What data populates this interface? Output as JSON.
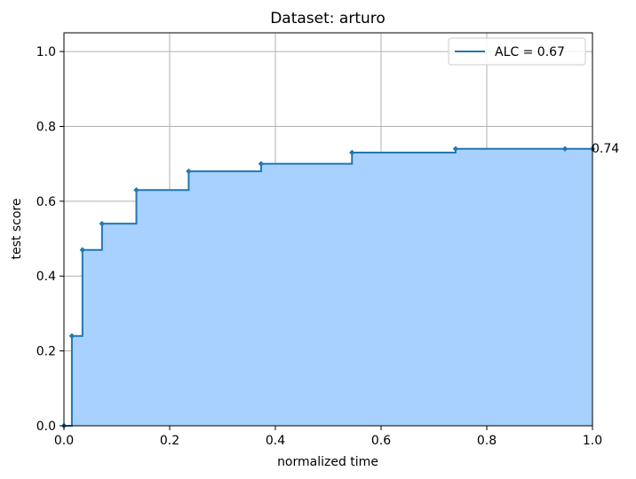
{
  "chart_data": {
    "type": "line",
    "title": "Dataset: arturo",
    "xlabel": "normalized time",
    "ylabel": "test score",
    "xlim": [
      0,
      1
    ],
    "ylim": [
      0,
      1.05
    ],
    "xticks": [
      0.0,
      0.2,
      0.4,
      0.6,
      0.8,
      1.0
    ],
    "yticks": [
      0.0,
      0.2,
      0.4,
      0.6,
      0.8,
      1.0
    ],
    "xtick_labels": [
      "0.0",
      "0.2",
      "0.4",
      "0.6",
      "0.8",
      "1.0"
    ],
    "ytick_labels": [
      "0.0",
      "0.2",
      "0.4",
      "0.6",
      "0.8",
      "1.0"
    ],
    "grid": true,
    "step": "post",
    "fill": true,
    "legend_position": "top-right",
    "series": [
      {
        "name": "ALC = 0.67",
        "color": "#1f77b4",
        "fill_color": "#a8d1ff",
        "x": [
          0.0,
          0.015,
          0.035,
          0.072,
          0.137,
          0.236,
          0.373,
          0.545,
          0.741,
          0.948,
          1.0
        ],
        "y": [
          0.0,
          0.24,
          0.47,
          0.54,
          0.63,
          0.68,
          0.7,
          0.73,
          0.74,
          0.74,
          0.74
        ]
      }
    ],
    "annotations": [
      {
        "text": "0.74",
        "x": 1.0,
        "y": 0.74
      }
    ]
  }
}
